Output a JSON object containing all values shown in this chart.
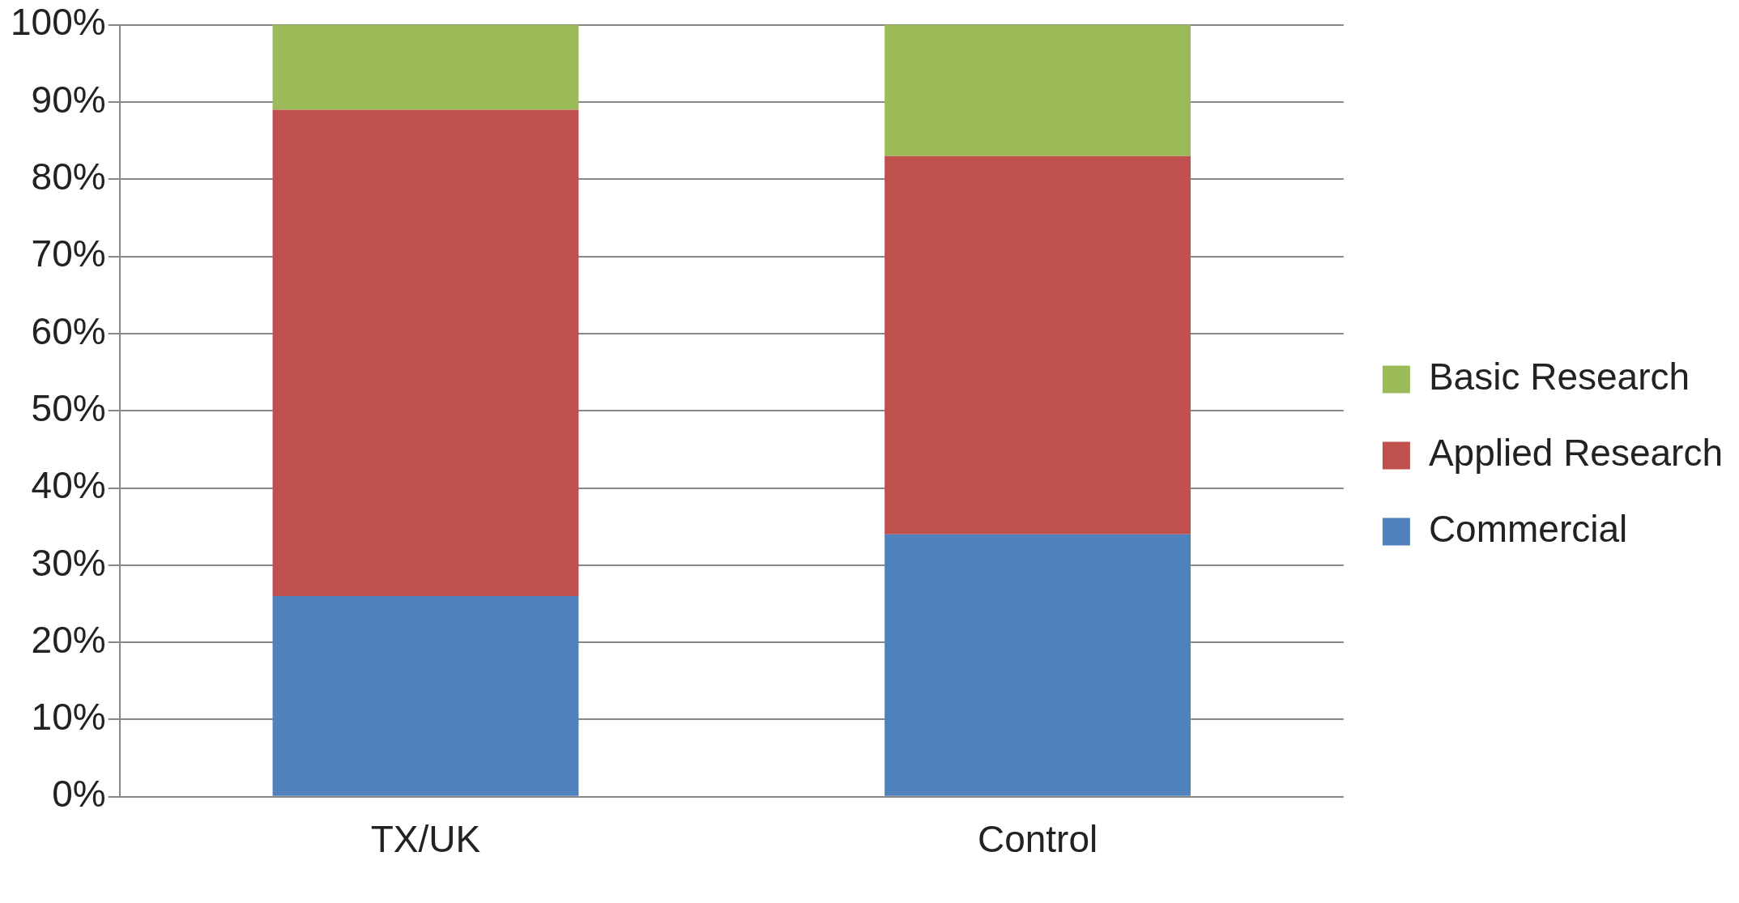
{
  "chart_data": {
    "type": "bar",
    "stacked": true,
    "categories": [
      "TX/UK",
      "Control"
    ],
    "series": [
      {
        "name": "Commercial",
        "color": "#4f81bd",
        "values": [
          26,
          34
        ]
      },
      {
        "name": "Applied Research",
        "color": "#c0504d",
        "values": [
          63,
          49
        ]
      },
      {
        "name": "Basic Research",
        "color": "#9bbb59",
        "values": [
          11,
          17
        ]
      }
    ],
    "ylim": [
      0,
      100
    ],
    "yticks": [
      {
        "value": 0,
        "label": "0%"
      },
      {
        "value": 10,
        "label": "10%"
      },
      {
        "value": 20,
        "label": "20%"
      },
      {
        "value": 30,
        "label": "30%"
      },
      {
        "value": 40,
        "label": "40%"
      },
      {
        "value": 50,
        "label": "50%"
      },
      {
        "value": 60,
        "label": "60%"
      },
      {
        "value": 70,
        "label": "70%"
      },
      {
        "value": 80,
        "label": "80%"
      },
      {
        "value": 90,
        "label": "90%"
      },
      {
        "value": 100,
        "label": "100%"
      }
    ],
    "grid": "y",
    "legend": "right"
  }
}
